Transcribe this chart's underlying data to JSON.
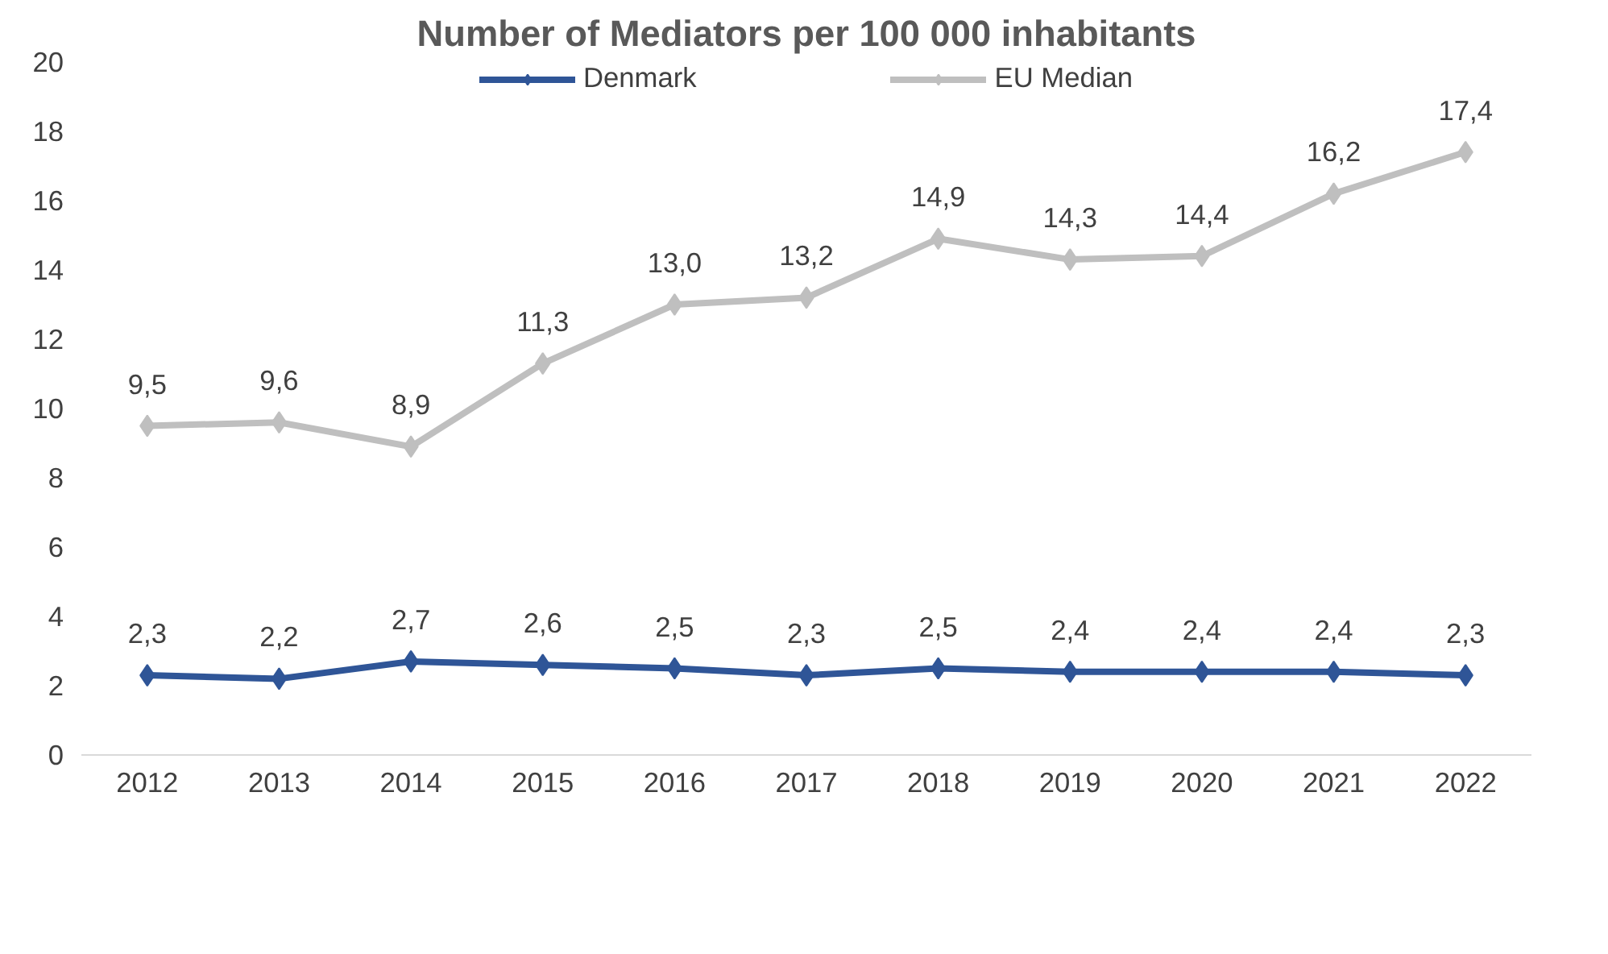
{
  "chart_data": {
    "type": "line",
    "title": "Number of Mediators per 100 000 inhabitants",
    "categories": [
      "2012",
      "2013",
      "2014",
      "2015",
      "2016",
      "2017",
      "2018",
      "2019",
      "2020",
      "2021",
      "2022"
    ],
    "series": [
      {
        "name": "Denmark",
        "color": "#2f5597",
        "values": [
          2.3,
          2.2,
          2.7,
          2.6,
          2.5,
          2.3,
          2.5,
          2.4,
          2.4,
          2.4,
          2.3
        ],
        "value_labels": [
          "2,3",
          "2,2",
          "2,7",
          "2,6",
          "2,5",
          "2,3",
          "2,5",
          "2,4",
          "2,4",
          "2,4",
          "2,3"
        ]
      },
      {
        "name": "EU Median",
        "color": "#bfbfbf",
        "values": [
          9.5,
          9.6,
          8.9,
          11.3,
          13.0,
          13.2,
          14.9,
          14.3,
          14.4,
          16.2,
          17.4
        ],
        "value_labels": [
          "9,5",
          "9,6",
          "8,9",
          "11,3",
          "13,0",
          "13,2",
          "14,9",
          "14,3",
          "14,4",
          "16,2",
          "17,4"
        ]
      }
    ],
    "ylim": [
      0,
      20
    ],
    "yticks": [
      0,
      2,
      4,
      6,
      8,
      10,
      12,
      14,
      16,
      18,
      20
    ],
    "grid": false,
    "legend": "top",
    "marker": "diamond",
    "line_style": "solid"
  }
}
